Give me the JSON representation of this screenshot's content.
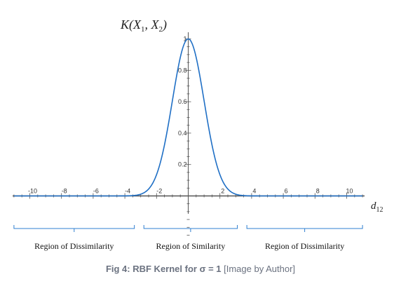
{
  "chart_data": {
    "type": "line",
    "title": "",
    "xlabel": "d",
    "xlabel_sub": "12",
    "ylabel": "K(X",
    "ylabel_sub1": "1",
    "ylabel_mid": ", X",
    "ylabel_sub2": "2",
    "ylabel_end": ")",
    "xlim": [
      -11,
      11
    ],
    "ylim": [
      0,
      1
    ],
    "x_ticks": [
      -10,
      -8,
      -6,
      -4,
      -2,
      2,
      4,
      6,
      8,
      10
    ],
    "x_tick_labels": [
      "-10",
      "-8",
      "-6",
      "-4",
      "-2",
      "2",
      "4",
      "6",
      "8",
      "10"
    ],
    "y_ticks": [
      0.2,
      0.4,
      0.6,
      0.8,
      1
    ],
    "y_tick_labels": [
      "0.2",
      "0.4",
      "0.6",
      "0.8",
      "1"
    ],
    "series": [
      {
        "function": "exp(-x^2 / (2*sigma^2))",
        "sigma": 1,
        "color": "#1f6fc5",
        "x": [
          -11,
          -10,
          -9,
          -8,
          -7,
          -6,
          -5,
          -4,
          -3.5,
          -3,
          -2.5,
          -2,
          -1.5,
          -1,
          -0.5,
          0,
          0.5,
          1,
          1.5,
          2,
          2.5,
          3,
          3.5,
          4,
          5,
          6,
          7,
          8,
          9,
          10,
          11
        ],
        "values": [
          0,
          0,
          0,
          0,
          0,
          0,
          0,
          0.0003,
          0.0022,
          0.0111,
          0.0439,
          0.1353,
          0.3247,
          0.6065,
          0.8825,
          1,
          0.8825,
          0.6065,
          0.3247,
          0.1353,
          0.0439,
          0.0111,
          0.0022,
          0.0003,
          0,
          0,
          0,
          0,
          0,
          0,
          0
        ]
      }
    ],
    "regions": [
      {
        "label": "Region of Dissimilarity",
        "from": -11,
        "to": -3.4
      },
      {
        "label": "Region of Similarity",
        "from": -2.8,
        "to": 3.1
      },
      {
        "label": "Region of Dissimilarity",
        "from": 3.7,
        "to": 11
      }
    ],
    "grid": false,
    "legend": "none"
  },
  "caption": {
    "bold": "Fig 4: RBF Kernel for σ = 1",
    "rest": " [Image by Author]"
  },
  "colors": {
    "curve": "#1f6fc5",
    "axis": "#555555",
    "brace": "#2f7fd0",
    "caption": "#6b7280"
  }
}
